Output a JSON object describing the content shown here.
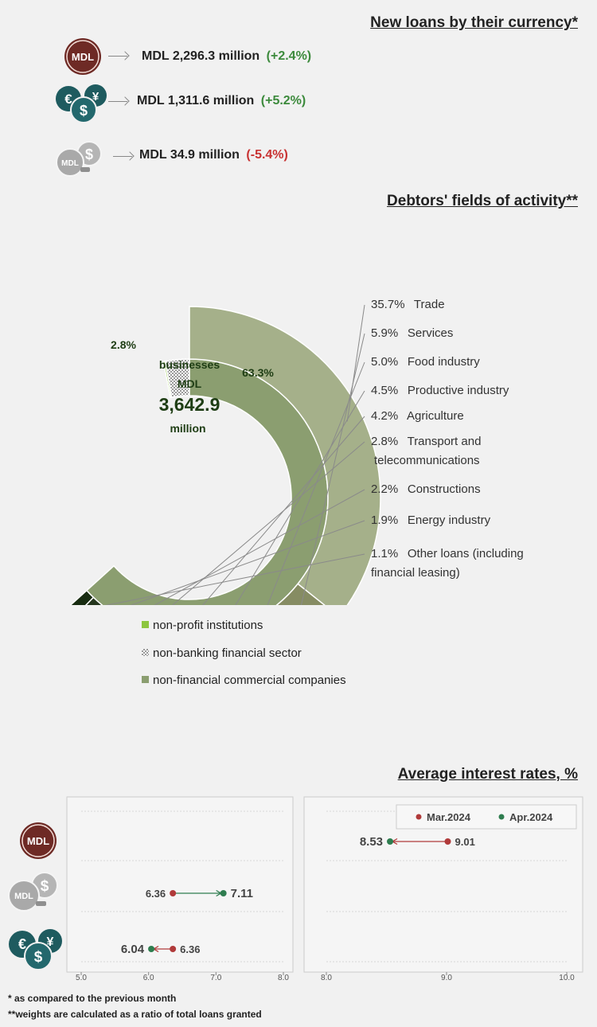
{
  "currency_section": {
    "title": "New loans by their currency*",
    "rows": [
      {
        "icon": "mdl-coin-icon",
        "amount": "MDL 2,296.3 million",
        "change": "(+2.4%)"
      },
      {
        "icon": "foreign-currency-coins-icon",
        "amount": "MDL 1,311.6 million",
        "change": "(+5.2%)"
      },
      {
        "icon": "indexed-currency-coins-icon",
        "amount": "MDL 34.9 million",
        "change": "(-5.4%)"
      }
    ],
    "icon_labels": {
      "mdl": "MDL",
      "euro": "€",
      "yen": "¥",
      "dollar": "$"
    }
  },
  "activity_section": {
    "title": "Debtors' fields of activity**",
    "center": {
      "line1": "businesses",
      "line2": "MDL",
      "value": "3,642.9",
      "line3": "million"
    }
  },
  "chart_data": [
    {
      "type": "pie",
      "variant": "sunburst",
      "inner_ring": [
        {
          "label": "non-financial commercial companies",
          "pct_label": "63.3%",
          "value": 63.3,
          "color": "#8b9e70"
        },
        {
          "label": "non-banking financial sector",
          "pct_label": "2.8%",
          "value": 2.8,
          "color": "#ffffff",
          "pattern": "checkered"
        },
        {
          "label": "non-profit institutions",
          "value": 0.2,
          "color": "#8dc63f"
        }
      ],
      "outer_ring": [
        {
          "pct": "35.7%",
          "label": "Trade",
          "value": 35.7,
          "color": "#a5b08a"
        },
        {
          "pct": "5.9%",
          "label": "Services",
          "value": 5.9,
          "color": "#868c63"
        },
        {
          "pct": "5.0%",
          "label": "Food industry",
          "value": 5.0,
          "color": "#8a7663"
        },
        {
          "pct": "4.5%",
          "label": "Productive industry",
          "value": 4.5,
          "color": "#9a7777"
        },
        {
          "pct": "4.2%",
          "label": "Agriculture",
          "value": 4.2,
          "color": "#7e5f65"
        },
        {
          "pct": "2.8%",
          "label": "Transport and telecommunications",
          "value": 2.8,
          "color": "#5b4650"
        },
        {
          "pct": "2.2%",
          "label": "Constructions",
          "value": 2.2,
          "color": "#433d36"
        },
        {
          "pct": "1.9%",
          "label": "Energy industry",
          "value": 1.9,
          "color": "#25361d"
        },
        {
          "pct": "1.1%",
          "label": "Other loans (including financial leasing)",
          "value": 1.1,
          "color": "#172b10"
        }
      ],
      "legend": [
        {
          "label": "non-profit institutions",
          "color": "#8dc63f"
        },
        {
          "label": "non-banking financial sector",
          "pattern": "checkered"
        },
        {
          "label": "non-financial commercial companies",
          "color": "#8b9e70"
        }
      ]
    },
    {
      "type": "scatter",
      "variant": "dumbbell",
      "title": "Average interest rates, %",
      "series": [
        {
          "name": "Mar.2024",
          "color": "#b03a3a"
        },
        {
          "name": "Apr.2024",
          "color": "#2e7d4f"
        }
      ],
      "rows": [
        {
          "icon": "mdl-coin-icon",
          "mar": 9.01,
          "apr": 8.53,
          "mar_label": "9.01",
          "apr_label": "8.53",
          "panel": "right"
        },
        {
          "icon": "indexed-currency-coins-icon",
          "mar": 6.36,
          "apr": 7.11,
          "mar_label": "6.36",
          "apr_label": "7.11",
          "panel": "left"
        },
        {
          "icon": "foreign-currency-coins-icon",
          "mar": 6.36,
          "apr": 6.04,
          "mar_label": "6.36",
          "apr_label": "6.04",
          "panel": "left"
        }
      ],
      "left_axis": {
        "xlim": [
          5.0,
          8.0
        ],
        "ticks": [
          "5.0",
          "6.0",
          "7.0",
          "8.0"
        ]
      },
      "right_axis": {
        "xlim": [
          8.0,
          10.0
        ],
        "ticks": [
          "8.0",
          "9.0",
          "10.0"
        ]
      }
    }
  ],
  "footnotes": [
    "* as compared to the previous month",
    "**weights are calculated as a ratio of total loans granted"
  ]
}
